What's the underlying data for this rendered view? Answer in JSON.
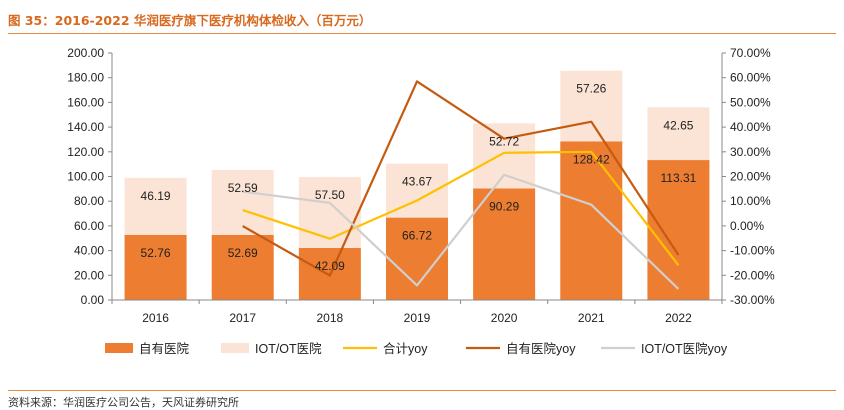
{
  "title": "图 35：2016-2022 华润医疗旗下医疗机构体检收入（百万元）",
  "source": "资料来源：华润医疗公司公告，天风证券研究所",
  "colors": {
    "bar_self": "#ec7d31",
    "bar_iot": "#fbe4d5",
    "line_total": "#ffc000",
    "line_self": "#c55a11",
    "line_iot": "#d0cece",
    "title": "#d8691f"
  },
  "chart_data": {
    "type": "bar",
    "stacked": true,
    "categories": [
      "2016",
      "2017",
      "2018",
      "2019",
      "2020",
      "2021",
      "2022"
    ],
    "series": [
      {
        "name": "自有医院",
        "type": "bar",
        "axis": "left",
        "values": [
          52.76,
          52.69,
          42.09,
          66.72,
          90.29,
          128.42,
          113.31
        ],
        "labels": [
          "52.76",
          "52.69",
          "42.09",
          "66.72",
          "90.29",
          "128.42",
          "113.31"
        ]
      },
      {
        "name": "IOT/OT医院",
        "type": "bar",
        "axis": "left",
        "values": [
          46.19,
          52.59,
          57.5,
          43.67,
          52.72,
          57.26,
          42.65
        ],
        "labels": [
          "46.19",
          "52.59",
          "57.50",
          "43.67",
          "52.72",
          "57.26",
          "42.65"
        ]
      },
      {
        "name": "合计yoy",
        "type": "line",
        "axis": "right",
        "values": [
          null,
          6.4,
          -5.2,
          10.3,
          29.6,
          30.0,
          -15.9
        ]
      },
      {
        "name": "自有医院yoy",
        "type": "line",
        "axis": "right",
        "values": [
          null,
          -0.1,
          -20.1,
          58.5,
          35.3,
          42.2,
          -11.8
        ]
      },
      {
        "name": "IOT/OT医院yoy",
        "type": "line",
        "axis": "right",
        "values": [
          null,
          13.9,
          9.3,
          -24.1,
          20.7,
          8.6,
          -25.5
        ]
      }
    ],
    "ylim_left": [
      0,
      200
    ],
    "yticks_left": [
      "0.00",
      "20.00",
      "40.00",
      "60.00",
      "80.00",
      "100.00",
      "120.00",
      "140.00",
      "160.00",
      "180.00",
      "200.00"
    ],
    "ylim_right": [
      -30,
      70
    ],
    "yticks_right": [
      "-30.00%",
      "-20.00%",
      "-10.00%",
      "0.00%",
      "10.00%",
      "20.00%",
      "30.00%",
      "40.00%",
      "50.00%",
      "60.00%",
      "70.00%"
    ],
    "grid": false,
    "legend_position": "bottom"
  }
}
